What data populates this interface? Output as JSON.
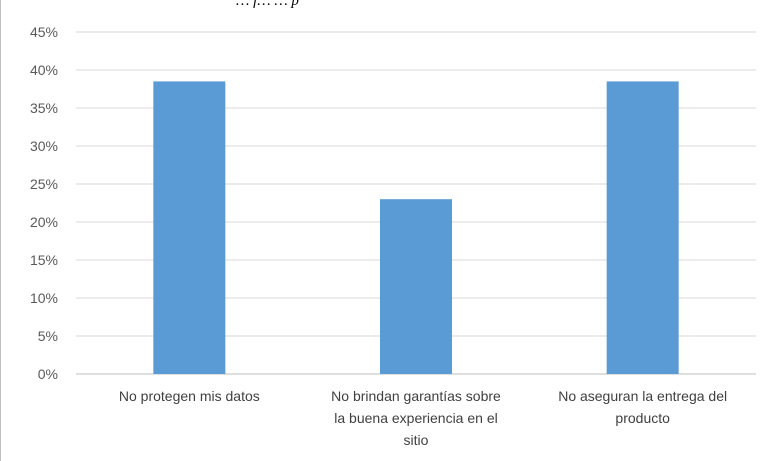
{
  "chart_data": {
    "type": "bar",
    "title": "",
    "title_fragment": "… f… … p",
    "categories": [
      [
        "No protegen mis datos"
      ],
      [
        "No brindan garantías sobre",
        "la buena experiencia en el",
        "sitio"
      ],
      [
        "No aseguran la entrega del",
        "producto"
      ]
    ],
    "values": [
      38.5,
      23.0,
      38.5
    ],
    "ylim": [
      0,
      45
    ],
    "yticks": [
      0,
      5,
      10,
      15,
      20,
      25,
      30,
      35,
      40,
      45
    ],
    "ytick_suffix": "%",
    "xlabel": "",
    "ylabel": "",
    "grid": true,
    "legend": "none",
    "bar_color": "#5b9bd5",
    "grid_color": "#d9d9d9"
  }
}
